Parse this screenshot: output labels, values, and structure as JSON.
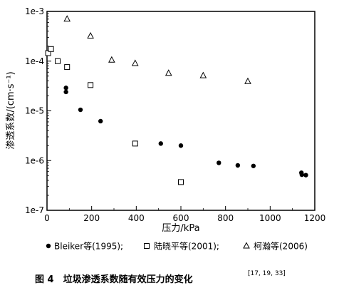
{
  "chart_data": {
    "type": "scatter",
    "title": "",
    "xlabel": "压力/kPa",
    "ylabel": "渗透系数/(cm·s⁻¹)",
    "xlim": [
      0,
      1200
    ],
    "ylim": [
      1e-07,
      0.001
    ],
    "yscale": "log",
    "grid": false,
    "legend_position": "bottom",
    "x_ticks": [
      0,
      200,
      400,
      600,
      800,
      1000,
      1200
    ],
    "x_tick_labels": [
      "0",
      "200",
      "400",
      "600",
      "800",
      "1000",
      "1200"
    ],
    "y_ticks": [
      1e-07,
      1e-06,
      1e-05,
      0.0001,
      0.001
    ],
    "y_tick_labels": [
      "1e-7",
      "1e-6",
      "1e-5",
      "1e-4",
      "1e-3"
    ],
    "series": [
      {
        "name": "Bleiker等(1995);",
        "marker": "filled-circle",
        "color": "#000000",
        "points": [
          [
            85,
            2.9e-05
          ],
          [
            85,
            2.4e-05
          ],
          [
            150,
            1.05e-05
          ],
          [
            240,
            6.2e-06
          ],
          [
            510,
            2.2e-06
          ],
          [
            600,
            2e-06
          ],
          [
            770,
            9e-07
          ],
          [
            855,
            8e-07
          ],
          [
            925,
            7.8e-07
          ],
          [
            1140,
            5.7e-07
          ],
          [
            1142,
            5.2e-07
          ],
          [
            1160,
            5.1e-07
          ]
        ]
      },
      {
        "name": "陆晓平等(2001);",
        "marker": "open-square",
        "color": "#000000",
        "points": [
          [
            5,
            0.000145
          ],
          [
            18,
            0.000175
          ],
          [
            48,
            0.0001
          ],
          [
            90,
            7.6e-05
          ],
          [
            195,
            3.3e-05
          ],
          [
            395,
            2.2e-06
          ],
          [
            600,
            3.7e-07
          ]
        ]
      },
      {
        "name": "柯瀚等(2006)",
        "marker": "open-triangle",
        "color": "#000000",
        "points": [
          [
            90,
            0.0007
          ],
          [
            195,
            0.00032
          ],
          [
            290,
            0.000105
          ],
          [
            395,
            9e-05
          ],
          [
            545,
            5.7e-05
          ],
          [
            700,
            5.1e-05
          ],
          [
            900,
            3.9e-05
          ]
        ]
      }
    ]
  },
  "caption": {
    "text": "图 4　垃圾渗透系数随有效压力的变化",
    "refs": "[17, 19, 33]"
  }
}
